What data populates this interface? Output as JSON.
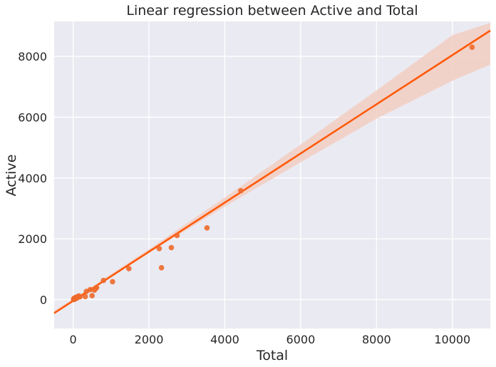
{
  "chart_data": {
    "type": "scatter",
    "title": "Linear regression between Active and Total",
    "xlabel": "Total",
    "ylabel": "Active",
    "xlim": [
      -500,
      11000
    ],
    "ylim": [
      -950,
      9150
    ],
    "xticks": [
      0,
      2000,
      4000,
      6000,
      8000,
      10000
    ],
    "yticks": [
      0,
      2000,
      4000,
      6000,
      8000
    ],
    "xtick_labels": [
      "0",
      "2000",
      "4000",
      "6000",
      "8000",
      "10000"
    ],
    "ytick_labels": [
      "0",
      "2000",
      "4000",
      "6000",
      "8000"
    ],
    "grid": true,
    "background": "#eaeaf2",
    "grid_color": "#ffffff",
    "point_color": "#ee6a2b",
    "line_color": "#ff5a0a",
    "band_color": "#f2cfc4",
    "points": [
      {
        "x": 10,
        "y": 10
      },
      {
        "x": 20,
        "y": 40
      },
      {
        "x": 30,
        "y": 5
      },
      {
        "x": 40,
        "y": 20
      },
      {
        "x": 50,
        "y": 60
      },
      {
        "x": 60,
        "y": 30
      },
      {
        "x": 80,
        "y": 80
      },
      {
        "x": 100,
        "y": 50
      },
      {
        "x": 130,
        "y": 100
      },
      {
        "x": 150,
        "y": 120
      },
      {
        "x": 180,
        "y": 90
      },
      {
        "x": 320,
        "y": 100
      },
      {
        "x": 350,
        "y": 270
      },
      {
        "x": 450,
        "y": 330
      },
      {
        "x": 500,
        "y": 130
      },
      {
        "x": 560,
        "y": 310
      },
      {
        "x": 600,
        "y": 370
      },
      {
        "x": 620,
        "y": 400
      },
      {
        "x": 800,
        "y": 630
      },
      {
        "x": 1040,
        "y": 590
      },
      {
        "x": 1470,
        "y": 1020
      },
      {
        "x": 2270,
        "y": 1680
      },
      {
        "x": 2330,
        "y": 1050
      },
      {
        "x": 2590,
        "y": 1710
      },
      {
        "x": 2740,
        "y": 2110
      },
      {
        "x": 3530,
        "y": 2360
      },
      {
        "x": 4420,
        "y": 3580
      },
      {
        "x": 10520,
        "y": 8300
      }
    ],
    "regression": {
      "slope": 0.808,
      "intercept": -40
    },
    "confidence_band": [
      {
        "x": -500,
        "lower": -480,
        "upper": -360
      },
      {
        "x": 0,
        "lower": -60,
        "upper": 20
      },
      {
        "x": 2000,
        "lower": 1540,
        "upper": 1660
      },
      {
        "x": 4000,
        "lower": 3060,
        "upper": 3360
      },
      {
        "x": 6000,
        "lower": 4520,
        "upper": 5100
      },
      {
        "x": 8000,
        "lower": 5950,
        "upper": 6880
      },
      {
        "x": 10000,
        "lower": 7200,
        "upper": 8700
      },
      {
        "x": 11000,
        "lower": 7730,
        "upper": 9100
      }
    ]
  }
}
